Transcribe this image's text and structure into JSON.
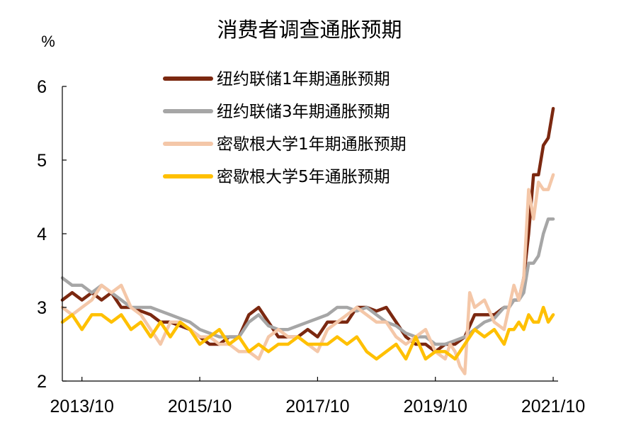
{
  "chart_data": {
    "type": "line",
    "title": "消费者调查通胀预期",
    "ylabel": "%",
    "xlabel": "",
    "ylim": [
      2,
      6
    ],
    "yticks": [
      2,
      3,
      4,
      5,
      6
    ],
    "xlim": [
      "2013-06",
      "2021-11"
    ],
    "xticks": [
      "2013/10",
      "2015/10",
      "2017/10",
      "2019/10",
      "2021/10"
    ],
    "grid": false,
    "legend_position": "top-center",
    "colors": {
      "ny_fed_1y": "#7B2810",
      "ny_fed_3y": "#A6A6A6",
      "umich_1y": "#F4C7A8",
      "umich_5y": "#FFC000"
    },
    "series": [
      {
        "key": "ny_fed_1y",
        "name": "纽约联储1年期通胀预期",
        "x": [
          "2013-06",
          "2013-08",
          "2013-10",
          "2013-12",
          "2014-02",
          "2014-04",
          "2014-06",
          "2014-08",
          "2014-10",
          "2014-12",
          "2015-02",
          "2015-04",
          "2015-06",
          "2015-08",
          "2015-10",
          "2015-12",
          "2016-02",
          "2016-04",
          "2016-06",
          "2016-08",
          "2016-10",
          "2016-12",
          "2017-02",
          "2017-04",
          "2017-06",
          "2017-08",
          "2017-10",
          "2017-12",
          "2018-02",
          "2018-04",
          "2018-06",
          "2018-08",
          "2018-10",
          "2018-12",
          "2019-02",
          "2019-04",
          "2019-06",
          "2019-08",
          "2019-10",
          "2019-12",
          "2020-02",
          "2020-04",
          "2020-06",
          "2020-08",
          "2020-10",
          "2020-12",
          "2021-01",
          "2021-02",
          "2021-03",
          "2021-04",
          "2021-05",
          "2021-06",
          "2021-07",
          "2021-08",
          "2021-09",
          "2021-10"
        ],
        "values": [
          3.1,
          3.2,
          3.1,
          3.2,
          3.1,
          3.2,
          3.0,
          3.0,
          2.95,
          2.9,
          2.8,
          2.8,
          2.75,
          2.7,
          2.6,
          2.5,
          2.5,
          2.6,
          2.6,
          2.9,
          3.0,
          2.8,
          2.6,
          2.6,
          2.6,
          2.7,
          2.6,
          2.8,
          2.8,
          2.8,
          3.0,
          3.0,
          2.95,
          3.0,
          2.8,
          2.6,
          2.5,
          2.5,
          2.4,
          2.5,
          2.5,
          2.6,
          2.9,
          2.9,
          2.9,
          3.0,
          3.0,
          3.1,
          3.1,
          3.4,
          4.0,
          4.8,
          4.8,
          5.2,
          5.3,
          5.7
        ]
      },
      {
        "key": "ny_fed_3y",
        "name": "纽约联储3年期通胀预期",
        "x": [
          "2013-06",
          "2013-08",
          "2013-10",
          "2013-12",
          "2014-02",
          "2014-04",
          "2014-06",
          "2014-08",
          "2014-10",
          "2014-12",
          "2015-02",
          "2015-04",
          "2015-06",
          "2015-08",
          "2015-10",
          "2015-12",
          "2016-02",
          "2016-04",
          "2016-06",
          "2016-08",
          "2016-10",
          "2016-12",
          "2017-02",
          "2017-04",
          "2017-06",
          "2017-08",
          "2017-10",
          "2017-12",
          "2018-02",
          "2018-04",
          "2018-06",
          "2018-08",
          "2018-10",
          "2018-12",
          "2019-02",
          "2019-04",
          "2019-06",
          "2019-08",
          "2019-10",
          "2019-12",
          "2020-02",
          "2020-04",
          "2020-06",
          "2020-08",
          "2020-10",
          "2020-12",
          "2021-01",
          "2021-02",
          "2021-03",
          "2021-04",
          "2021-05",
          "2021-06",
          "2021-07",
          "2021-08",
          "2021-09",
          "2021-10"
        ],
        "values": [
          3.4,
          3.3,
          3.3,
          3.2,
          3.3,
          3.2,
          3.1,
          3.0,
          3.0,
          3.0,
          2.95,
          2.9,
          2.85,
          2.8,
          2.7,
          2.65,
          2.6,
          2.6,
          2.6,
          2.8,
          2.9,
          2.75,
          2.7,
          2.7,
          2.75,
          2.8,
          2.85,
          2.9,
          3.0,
          3.0,
          2.95,
          3.0,
          2.9,
          2.8,
          2.75,
          2.65,
          2.6,
          2.6,
          2.5,
          2.5,
          2.55,
          2.6,
          2.7,
          2.8,
          2.85,
          3.0,
          3.0,
          3.1,
          3.1,
          3.2,
          3.6,
          3.6,
          3.7,
          4.0,
          4.2,
          4.2
        ]
      },
      {
        "key": "umich_1y",
        "name": "密歇根大学1年期通胀预期",
        "x": [
          "2013-06",
          "2013-08",
          "2013-10",
          "2013-12",
          "2014-02",
          "2014-04",
          "2014-06",
          "2014-08",
          "2014-10",
          "2014-12",
          "2015-02",
          "2015-04",
          "2015-06",
          "2015-08",
          "2015-10",
          "2015-12",
          "2016-02",
          "2016-04",
          "2016-06",
          "2016-08",
          "2016-10",
          "2016-12",
          "2017-02",
          "2017-04",
          "2017-06",
          "2017-08",
          "2017-10",
          "2017-12",
          "2018-02",
          "2018-04",
          "2018-06",
          "2018-08",
          "2018-10",
          "2018-12",
          "2019-02",
          "2019-04",
          "2019-06",
          "2019-08",
          "2019-10",
          "2019-12",
          "2020-01",
          "2020-02",
          "2020-03",
          "2020-04",
          "2020-05",
          "2020-06",
          "2020-08",
          "2020-10",
          "2020-12",
          "2021-01",
          "2021-02",
          "2021-03",
          "2021-04",
          "2021-05",
          "2021-06",
          "2021-07",
          "2021-08",
          "2021-09",
          "2021-10"
        ],
        "values": [
          3.0,
          2.9,
          3.0,
          3.1,
          3.3,
          3.2,
          3.3,
          3.0,
          2.9,
          2.7,
          2.5,
          2.8,
          2.8,
          2.7,
          2.6,
          2.6,
          2.5,
          2.5,
          2.4,
          2.4,
          2.3,
          2.6,
          2.7,
          2.6,
          2.6,
          2.5,
          2.4,
          2.7,
          2.8,
          2.9,
          3.0,
          2.9,
          2.8,
          2.8,
          2.6,
          2.5,
          2.6,
          2.7,
          2.4,
          2.3,
          2.5,
          2.4,
          2.2,
          2.1,
          3.2,
          3.0,
          3.1,
          2.8,
          2.7,
          3.0,
          3.3,
          3.1,
          3.4,
          4.6,
          4.2,
          4.7,
          4.6,
          4.6,
          4.8
        ]
      },
      {
        "key": "umich_5y",
        "name": "密歇根大学5年通胀预期",
        "x": [
          "2013-06",
          "2013-08",
          "2013-10",
          "2013-12",
          "2014-02",
          "2014-04",
          "2014-06",
          "2014-08",
          "2014-10",
          "2014-12",
          "2015-02",
          "2015-04",
          "2015-06",
          "2015-08",
          "2015-10",
          "2015-12",
          "2016-02",
          "2016-04",
          "2016-06",
          "2016-08",
          "2016-10",
          "2016-12",
          "2017-02",
          "2017-04",
          "2017-06",
          "2017-08",
          "2017-10",
          "2017-12",
          "2018-02",
          "2018-04",
          "2018-06",
          "2018-08",
          "2018-10",
          "2018-12",
          "2019-02",
          "2019-04",
          "2019-06",
          "2019-08",
          "2019-10",
          "2019-12",
          "2020-02",
          "2020-04",
          "2020-06",
          "2020-08",
          "2020-10",
          "2020-12",
          "2021-01",
          "2021-02",
          "2021-03",
          "2021-04",
          "2021-05",
          "2021-06",
          "2021-07",
          "2021-08",
          "2021-09",
          "2021-10"
        ],
        "values": [
          2.8,
          2.9,
          2.7,
          2.9,
          2.9,
          2.8,
          2.9,
          2.7,
          2.8,
          2.6,
          2.8,
          2.6,
          2.8,
          2.7,
          2.5,
          2.6,
          2.7,
          2.5,
          2.6,
          2.4,
          2.5,
          2.4,
          2.5,
          2.5,
          2.6,
          2.5,
          2.5,
          2.5,
          2.6,
          2.5,
          2.6,
          2.4,
          2.3,
          2.4,
          2.5,
          2.3,
          2.6,
          2.3,
          2.4,
          2.4,
          2.3,
          2.5,
          2.7,
          2.6,
          2.7,
          2.5,
          2.7,
          2.7,
          2.8,
          2.7,
          2.9,
          2.8,
          2.8,
          3.0,
          2.8,
          2.9
        ]
      }
    ]
  }
}
